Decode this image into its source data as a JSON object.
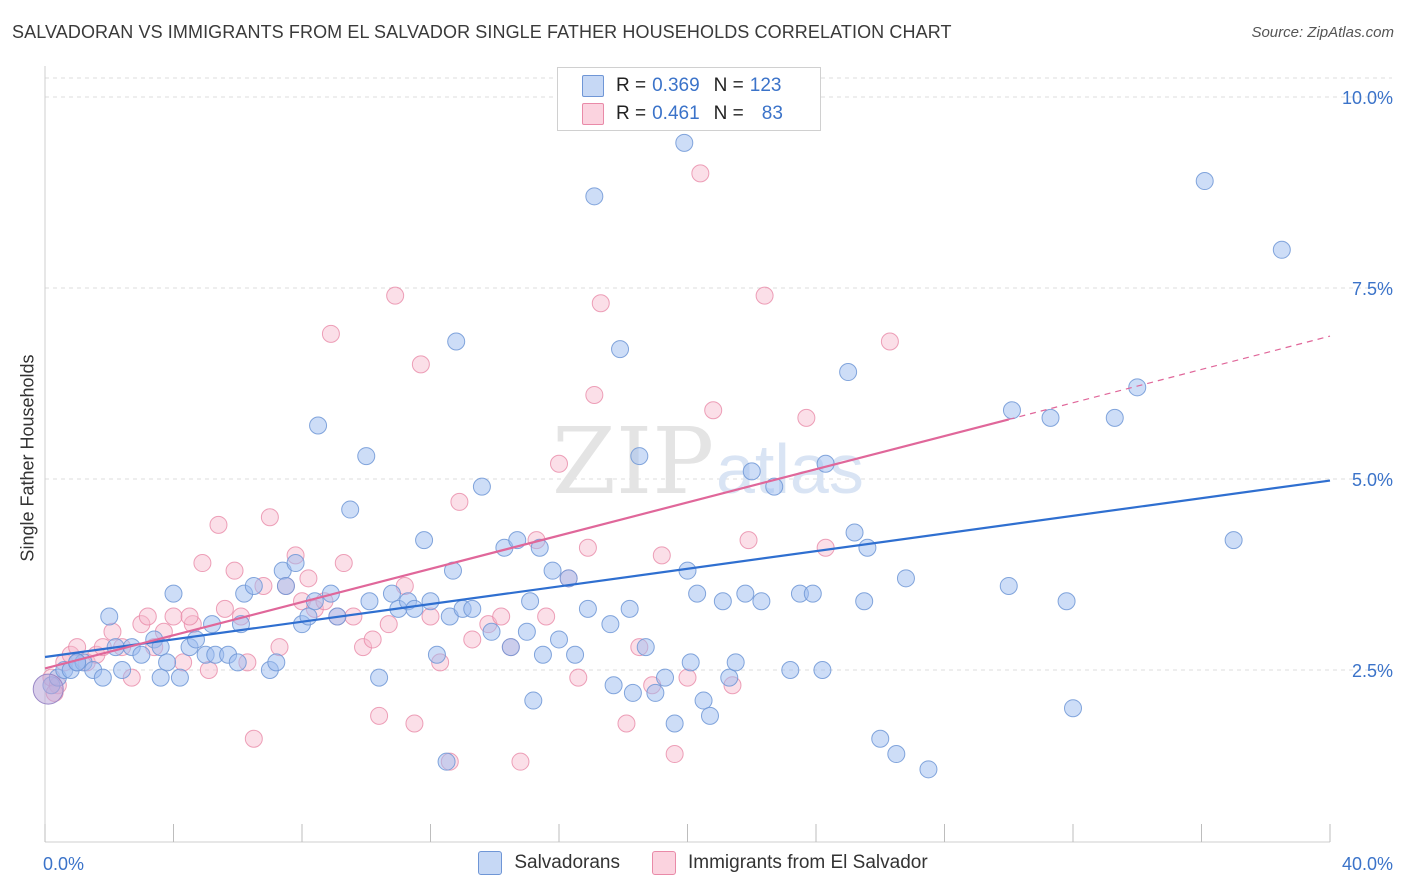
{
  "title": "SALVADORAN VS IMMIGRANTS FROM EL SALVADOR SINGLE FATHER HOUSEHOLDS CORRELATION CHART",
  "source": "Source: ZipAtlas.com",
  "watermark": {
    "zip": "ZIP",
    "atlas": "atlas"
  },
  "legend": {
    "rows": [
      {
        "r_label": "R =",
        "r_value": "0.369",
        "n_label": "N =",
        "n_value": "123",
        "color": "#9bbcef",
        "border": "#6f96d6"
      },
      {
        "r_label": "R =",
        "r_value": "0.461",
        "n_label": "N =",
        "n_value": "83",
        "color": "#f7b8cb",
        "border": "#e98aa8"
      }
    ]
  },
  "bottom_legend": [
    {
      "label": "Salvadorans",
      "color": "#9bbcef",
      "border": "#6f96d6"
    },
    {
      "label": "Immigrants from El Salvador",
      "color": "#f7b8cb",
      "border": "#e98aa8"
    }
  ],
  "chart_data": {
    "type": "scatter",
    "xlabel": "",
    "ylabel": "Single Father Households",
    "xlim": [
      0,
      40
    ],
    "ylim": [
      0,
      10.5
    ],
    "x_tick_labels": [
      "0.0%",
      "40.0%"
    ],
    "y_ticks": [
      2.5,
      5.0,
      7.5,
      10.0
    ],
    "y_tick_labels": [
      "2.5%",
      "5.0%",
      "7.5%",
      "10.0%"
    ],
    "grid": true,
    "colors": {
      "blue_fill": "#9bbcef",
      "blue_line": "#2f6fd0",
      "pink_fill": "#f7b8cb",
      "pink_line": "#e0679a",
      "tick_text": "#3b73c9"
    },
    "series": [
      {
        "name": "Salvadorans",
        "trend": {
          "x0": 0,
          "y0": 2.67,
          "x1": 40,
          "y1": 4.98
        },
        "points": [
          [
            0.2,
            2.3
          ],
          [
            0.4,
            2.4
          ],
          [
            0.6,
            2.5
          ],
          [
            0.8,
            2.5
          ],
          [
            1.0,
            2.6
          ],
          [
            1.2,
            2.6
          ],
          [
            1.5,
            2.5
          ],
          [
            1.8,
            2.4
          ],
          [
            2.0,
            3.2
          ],
          [
            2.2,
            2.8
          ],
          [
            2.4,
            2.5
          ],
          [
            2.7,
            2.8
          ],
          [
            3.0,
            2.7
          ],
          [
            3.4,
            2.9
          ],
          [
            3.6,
            2.8
          ],
          [
            3.8,
            2.6
          ],
          [
            4.0,
            3.5
          ],
          [
            4.2,
            2.4
          ],
          [
            4.5,
            2.8
          ],
          [
            4.7,
            2.9
          ],
          [
            5.0,
            2.7
          ],
          [
            5.2,
            3.1
          ],
          [
            5.3,
            2.7
          ],
          [
            5.7,
            2.7
          ],
          [
            6.0,
            2.6
          ],
          [
            6.1,
            3.1
          ],
          [
            6.2,
            3.5
          ],
          [
            6.5,
            3.6
          ],
          [
            7.0,
            2.5
          ],
          [
            7.2,
            2.6
          ],
          [
            7.4,
            3.8
          ],
          [
            7.5,
            3.6
          ],
          [
            7.8,
            3.9
          ],
          [
            8.0,
            3.1
          ],
          [
            8.2,
            3.2
          ],
          [
            8.4,
            3.4
          ],
          [
            8.5,
            5.7
          ],
          [
            8.9,
            3.5
          ],
          [
            9.1,
            3.2
          ],
          [
            9.5,
            4.6
          ],
          [
            10.0,
            5.3
          ],
          [
            10.1,
            3.4
          ],
          [
            10.4,
            2.4
          ],
          [
            10.8,
            3.5
          ],
          [
            11.0,
            3.3
          ],
          [
            11.3,
            3.4
          ],
          [
            11.5,
            3.3
          ],
          [
            11.8,
            4.2
          ],
          [
            12.0,
            3.4
          ],
          [
            12.2,
            2.7
          ],
          [
            12.7,
            3.8
          ],
          [
            12.6,
            3.2
          ],
          [
            12.8,
            6.8
          ],
          [
            13.0,
            3.3
          ],
          [
            13.3,
            3.3
          ],
          [
            13.6,
            4.9
          ],
          [
            13.9,
            3.0
          ],
          [
            14.3,
            4.1
          ],
          [
            14.5,
            2.8
          ],
          [
            14.7,
            4.2
          ],
          [
            15.0,
            3.0
          ],
          [
            15.1,
            3.4
          ],
          [
            15.2,
            2.1
          ],
          [
            15.4,
            4.1
          ],
          [
            15.5,
            2.7
          ],
          [
            15.8,
            3.8
          ],
          [
            16.0,
            2.9
          ],
          [
            16.3,
            3.7
          ],
          [
            16.5,
            2.7
          ],
          [
            16.9,
            3.3
          ],
          [
            17.1,
            8.7
          ],
          [
            17.6,
            3.1
          ],
          [
            17.9,
            6.7
          ],
          [
            17.7,
            2.3
          ],
          [
            18.2,
            3.3
          ],
          [
            18.3,
            2.2
          ],
          [
            18.5,
            5.3
          ],
          [
            18.7,
            2.8
          ],
          [
            19.0,
            2.2
          ],
          [
            19.3,
            2.4
          ],
          [
            19.6,
            1.8
          ],
          [
            19.9,
            9.4
          ],
          [
            20.0,
            3.8
          ],
          [
            20.1,
            2.6
          ],
          [
            20.3,
            3.5
          ],
          [
            20.5,
            2.1
          ],
          [
            20.7,
            1.9
          ],
          [
            21.1,
            3.4
          ],
          [
            21.3,
            2.4
          ],
          [
            21.5,
            2.6
          ],
          [
            21.8,
            3.5
          ],
          [
            22.0,
            5.1
          ],
          [
            22.3,
            3.4
          ],
          [
            22.7,
            4.9
          ],
          [
            23.2,
            2.5
          ],
          [
            23.5,
            3.5
          ],
          [
            23.9,
            3.5
          ],
          [
            24.2,
            2.5
          ],
          [
            24.3,
            5.2
          ],
          [
            25.0,
            6.4
          ],
          [
            25.2,
            4.3
          ],
          [
            25.5,
            3.4
          ],
          [
            25.6,
            4.1
          ],
          [
            26.0,
            1.6
          ],
          [
            26.5,
            1.4
          ],
          [
            26.8,
            3.7
          ],
          [
            27.5,
            1.2
          ],
          [
            30.0,
            3.6
          ],
          [
            31.3,
            5.8
          ],
          [
            31.8,
            3.4
          ],
          [
            32.0,
            2.0
          ],
          [
            33.3,
            5.8
          ],
          [
            34.0,
            6.2
          ],
          [
            36.1,
            8.9
          ],
          [
            37.0,
            4.2
          ],
          [
            38.5,
            8.0
          ],
          [
            1.0,
            2.6
          ],
          [
            3.6,
            2.4
          ],
          [
            12.5,
            1.3
          ],
          [
            30.1,
            5.9
          ]
        ]
      },
      {
        "name": "Immigrants from El Salvador",
        "trend": {
          "x0": 0,
          "y0": 2.52,
          "x1": 30.0,
          "y1": 5.78
        },
        "trend_dashed": {
          "x0": 30.0,
          "y0": 5.78,
          "x1": 40,
          "y1": 6.87
        },
        "points": [
          [
            0.2,
            2.4
          ],
          [
            0.4,
            2.3
          ],
          [
            0.6,
            2.6
          ],
          [
            0.8,
            2.7
          ],
          [
            1.0,
            2.8
          ],
          [
            1.3,
            2.6
          ],
          [
            1.6,
            2.7
          ],
          [
            1.8,
            2.8
          ],
          [
            2.1,
            3.0
          ],
          [
            2.4,
            2.8
          ],
          [
            2.7,
            2.4
          ],
          [
            3.0,
            3.1
          ],
          [
            3.2,
            3.2
          ],
          [
            3.4,
            2.8
          ],
          [
            3.7,
            3.0
          ],
          [
            4.0,
            3.2
          ],
          [
            4.3,
            2.6
          ],
          [
            4.6,
            3.1
          ],
          [
            4.9,
            3.9
          ],
          [
            5.1,
            2.5
          ],
          [
            5.4,
            4.4
          ],
          [
            5.6,
            3.3
          ],
          [
            5.9,
            3.8
          ],
          [
            6.1,
            3.2
          ],
          [
            6.3,
            2.6
          ],
          [
            6.5,
            1.6
          ],
          [
            6.8,
            3.6
          ],
          [
            7.0,
            4.5
          ],
          [
            7.3,
            2.8
          ],
          [
            7.5,
            3.6
          ],
          [
            7.8,
            4.0
          ],
          [
            8.0,
            3.4
          ],
          [
            8.2,
            3.7
          ],
          [
            8.4,
            3.3
          ],
          [
            8.7,
            3.4
          ],
          [
            8.9,
            6.9
          ],
          [
            9.1,
            3.2
          ],
          [
            9.3,
            3.9
          ],
          [
            9.6,
            3.2
          ],
          [
            9.9,
            2.8
          ],
          [
            10.2,
            2.9
          ],
          [
            10.4,
            1.9
          ],
          [
            10.7,
            3.1
          ],
          [
            10.9,
            7.4
          ],
          [
            11.2,
            3.6
          ],
          [
            11.5,
            1.8
          ],
          [
            11.7,
            6.5
          ],
          [
            12.0,
            3.2
          ],
          [
            12.3,
            2.6
          ],
          [
            12.6,
            1.3
          ],
          [
            12.9,
            4.7
          ],
          [
            13.3,
            2.9
          ],
          [
            13.8,
            3.1
          ],
          [
            14.2,
            3.2
          ],
          [
            14.5,
            2.8
          ],
          [
            14.8,
            1.3
          ],
          [
            15.3,
            4.2
          ],
          [
            15.6,
            3.2
          ],
          [
            16.0,
            5.2
          ],
          [
            16.3,
            3.7
          ],
          [
            16.6,
            2.4
          ],
          [
            16.9,
            4.1
          ],
          [
            17.1,
            6.1
          ],
          [
            17.3,
            7.3
          ],
          [
            18.1,
            1.8
          ],
          [
            18.5,
            2.8
          ],
          [
            18.9,
            2.3
          ],
          [
            19.2,
            4.0
          ],
          [
            19.6,
            1.4
          ],
          [
            20.0,
            2.4
          ],
          [
            20.4,
            9.0
          ],
          [
            20.8,
            5.9
          ],
          [
            21.4,
            2.3
          ],
          [
            21.9,
            4.2
          ],
          [
            22.4,
            7.4
          ],
          [
            23.7,
            5.8
          ],
          [
            24.3,
            4.1
          ],
          [
            26.3,
            6.8
          ],
          [
            4.5,
            3.2
          ],
          [
            0.3,
            2.2
          ]
        ]
      }
    ]
  }
}
